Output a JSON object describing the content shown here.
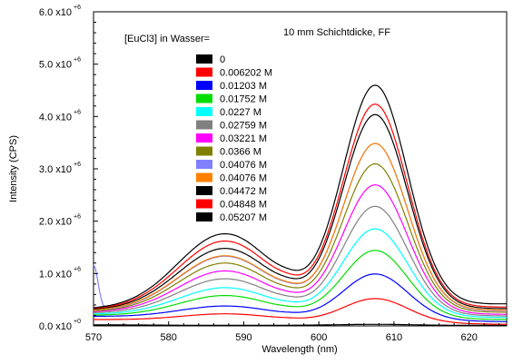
{
  "chart_data": {
    "type": "line",
    "xlabel": "Wavelength (nm)",
    "ylabel": "Intensity (CPS)",
    "xlim": [
      570,
      625
    ],
    "ylim": [
      0,
      6000000
    ],
    "x_ticks": [
      "570",
      "580",
      "590",
      "600",
      "610",
      "620"
    ],
    "x_tick_values": [
      570,
      580,
      590,
      600,
      610,
      620
    ],
    "y_ticks": [
      {
        "value": 0,
        "mantissa": "0.0 x10",
        "exp": "+0"
      },
      {
        "value": 1000000,
        "mantissa": "1.0 x10",
        "exp": "+6"
      },
      {
        "value": 2000000,
        "mantissa": "2.0 x10",
        "exp": "+6"
      },
      {
        "value": 3000000,
        "mantissa": "3.0 x10",
        "exp": "+6"
      },
      {
        "value": 4000000,
        "mantissa": "4.0 x10",
        "exp": "+6"
      },
      {
        "value": 5000000,
        "mantissa": "5.0 x10",
        "exp": "+6"
      },
      {
        "value": 6000000,
        "mantissa": "6.0 x10",
        "exp": "+6"
      }
    ],
    "annotation": "10 mm Schichtdicke, FF",
    "legend_title": "[EuCl3] in Wasser=",
    "legend_position": "top-left",
    "grid": false,
    "series": [
      {
        "name": "0",
        "color": "#000000",
        "peak1": 10000,
        "peak2": 30000,
        "base_start": 20000,
        "base_end": 10000,
        "min1": 5000,
        "min2": 5000,
        "spike": 0
      },
      {
        "name": "0.006202 M",
        "color": "#ff0000",
        "peak1": 230000,
        "peak2": 520000,
        "base_start": 120000,
        "base_end": 30000,
        "min1": 130000,
        "min2": 50000,
        "spike": 0
      },
      {
        "name": "0.01203 M",
        "color": "#0000ff",
        "peak1": 380000,
        "peak2": 990000,
        "base_start": 180000,
        "base_end": 80000,
        "min1": 200000,
        "min2": 80000,
        "spike": 0
      },
      {
        "name": "0.01752 M",
        "color": "#00dd00",
        "peak1": 580000,
        "peak2": 1440000,
        "base_start": 200000,
        "base_end": 120000,
        "min1": 290000,
        "min2": 110000,
        "spike": 0
      },
      {
        "name": "0.0227 M",
        "color": "#00ffff",
        "peak1": 730000,
        "peak2": 1850000,
        "base_start": 220000,
        "base_end": 160000,
        "min1": 360000,
        "min2": 150000,
        "spike": 0
      },
      {
        "name": "0.02759 M",
        "color": "#808080",
        "peak1": 900000,
        "peak2": 2280000,
        "base_start": 240000,
        "base_end": 190000,
        "min1": 440000,
        "min2": 190000,
        "spike": 0
      },
      {
        "name": "0.03221 M",
        "color": "#ff00ff",
        "peak1": 1050000,
        "peak2": 2690000,
        "base_start": 260000,
        "base_end": 220000,
        "min1": 510000,
        "min2": 210000,
        "spike": 0
      },
      {
        "name": "0.0366 M",
        "color": "#808000",
        "peak1": 1200000,
        "peak2": 3090000,
        "base_start": 270000,
        "base_end": 260000,
        "min1": 580000,
        "min2": 240000,
        "spike": 0
      },
      {
        "name": "0.04076 M",
        "color": "#8080ff",
        "peak1": 1330000,
        "peak2": 3480000,
        "base_start": 280000,
        "base_end": 290000,
        "min1": 650000,
        "min2": 270000,
        "spike": 1150000
      },
      {
        "name": "0.04076 M",
        "color": "#ff8000",
        "peak1": 1340000,
        "peak2": 3480000,
        "base_start": 290000,
        "base_end": 300000,
        "min1": 660000,
        "min2": 280000,
        "spike": 0
      },
      {
        "name": "0.04472 M",
        "color": "#000000",
        "peak1": 1480000,
        "peak2": 4030000,
        "base_start": 300000,
        "base_end": 330000,
        "min1": 720000,
        "min2": 330000,
        "spike": 0
      },
      {
        "name": "0.04848 M",
        "color": "#ff0000",
        "peak1": 1620000,
        "peak2": 4230000,
        "base_start": 310000,
        "base_end": 360000,
        "min1": 790000,
        "min2": 360000,
        "spike": 0
      },
      {
        "name": "0.05207 M",
        "color": "#000000",
        "peak1": 1760000,
        "peak2": 4590000,
        "base_start": 320000,
        "base_end": 420000,
        "min1": 870000,
        "min2": 400000,
        "spike": 0
      }
    ]
  }
}
